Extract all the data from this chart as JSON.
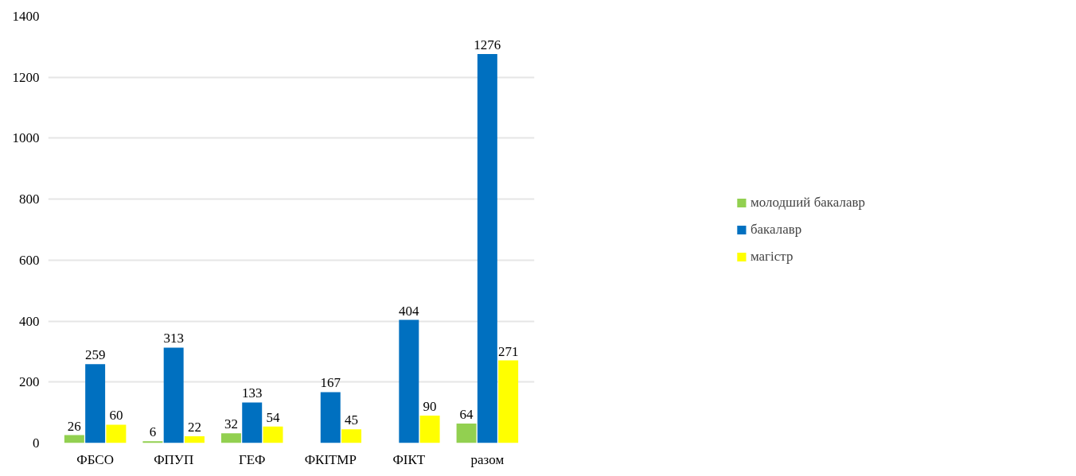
{
  "chart_data": {
    "type": "bar",
    "categories": [
      "ФБСО",
      "ФПУП",
      "ГЕФ",
      "ФКІТМР",
      "ФІКТ",
      "разом"
    ],
    "series": [
      {
        "name": "молодший бакалавр",
        "color": "#92d050",
        "values": [
          26,
          6,
          32,
          null,
          null,
          64
        ]
      },
      {
        "name": "бакалавр",
        "color": "#0070c0",
        "values": [
          259,
          313,
          133,
          167,
          404,
          1276
        ]
      },
      {
        "name": "магістр",
        "color": "#ffff00",
        "values": [
          60,
          22,
          54,
          45,
          90,
          271
        ]
      }
    ],
    "ylim": [
      0,
      1400
    ],
    "yticks": [
      0,
      200,
      400,
      600,
      800,
      1000,
      1200,
      1400
    ],
    "grid": "y",
    "legend": "right",
    "data_labels": true
  }
}
